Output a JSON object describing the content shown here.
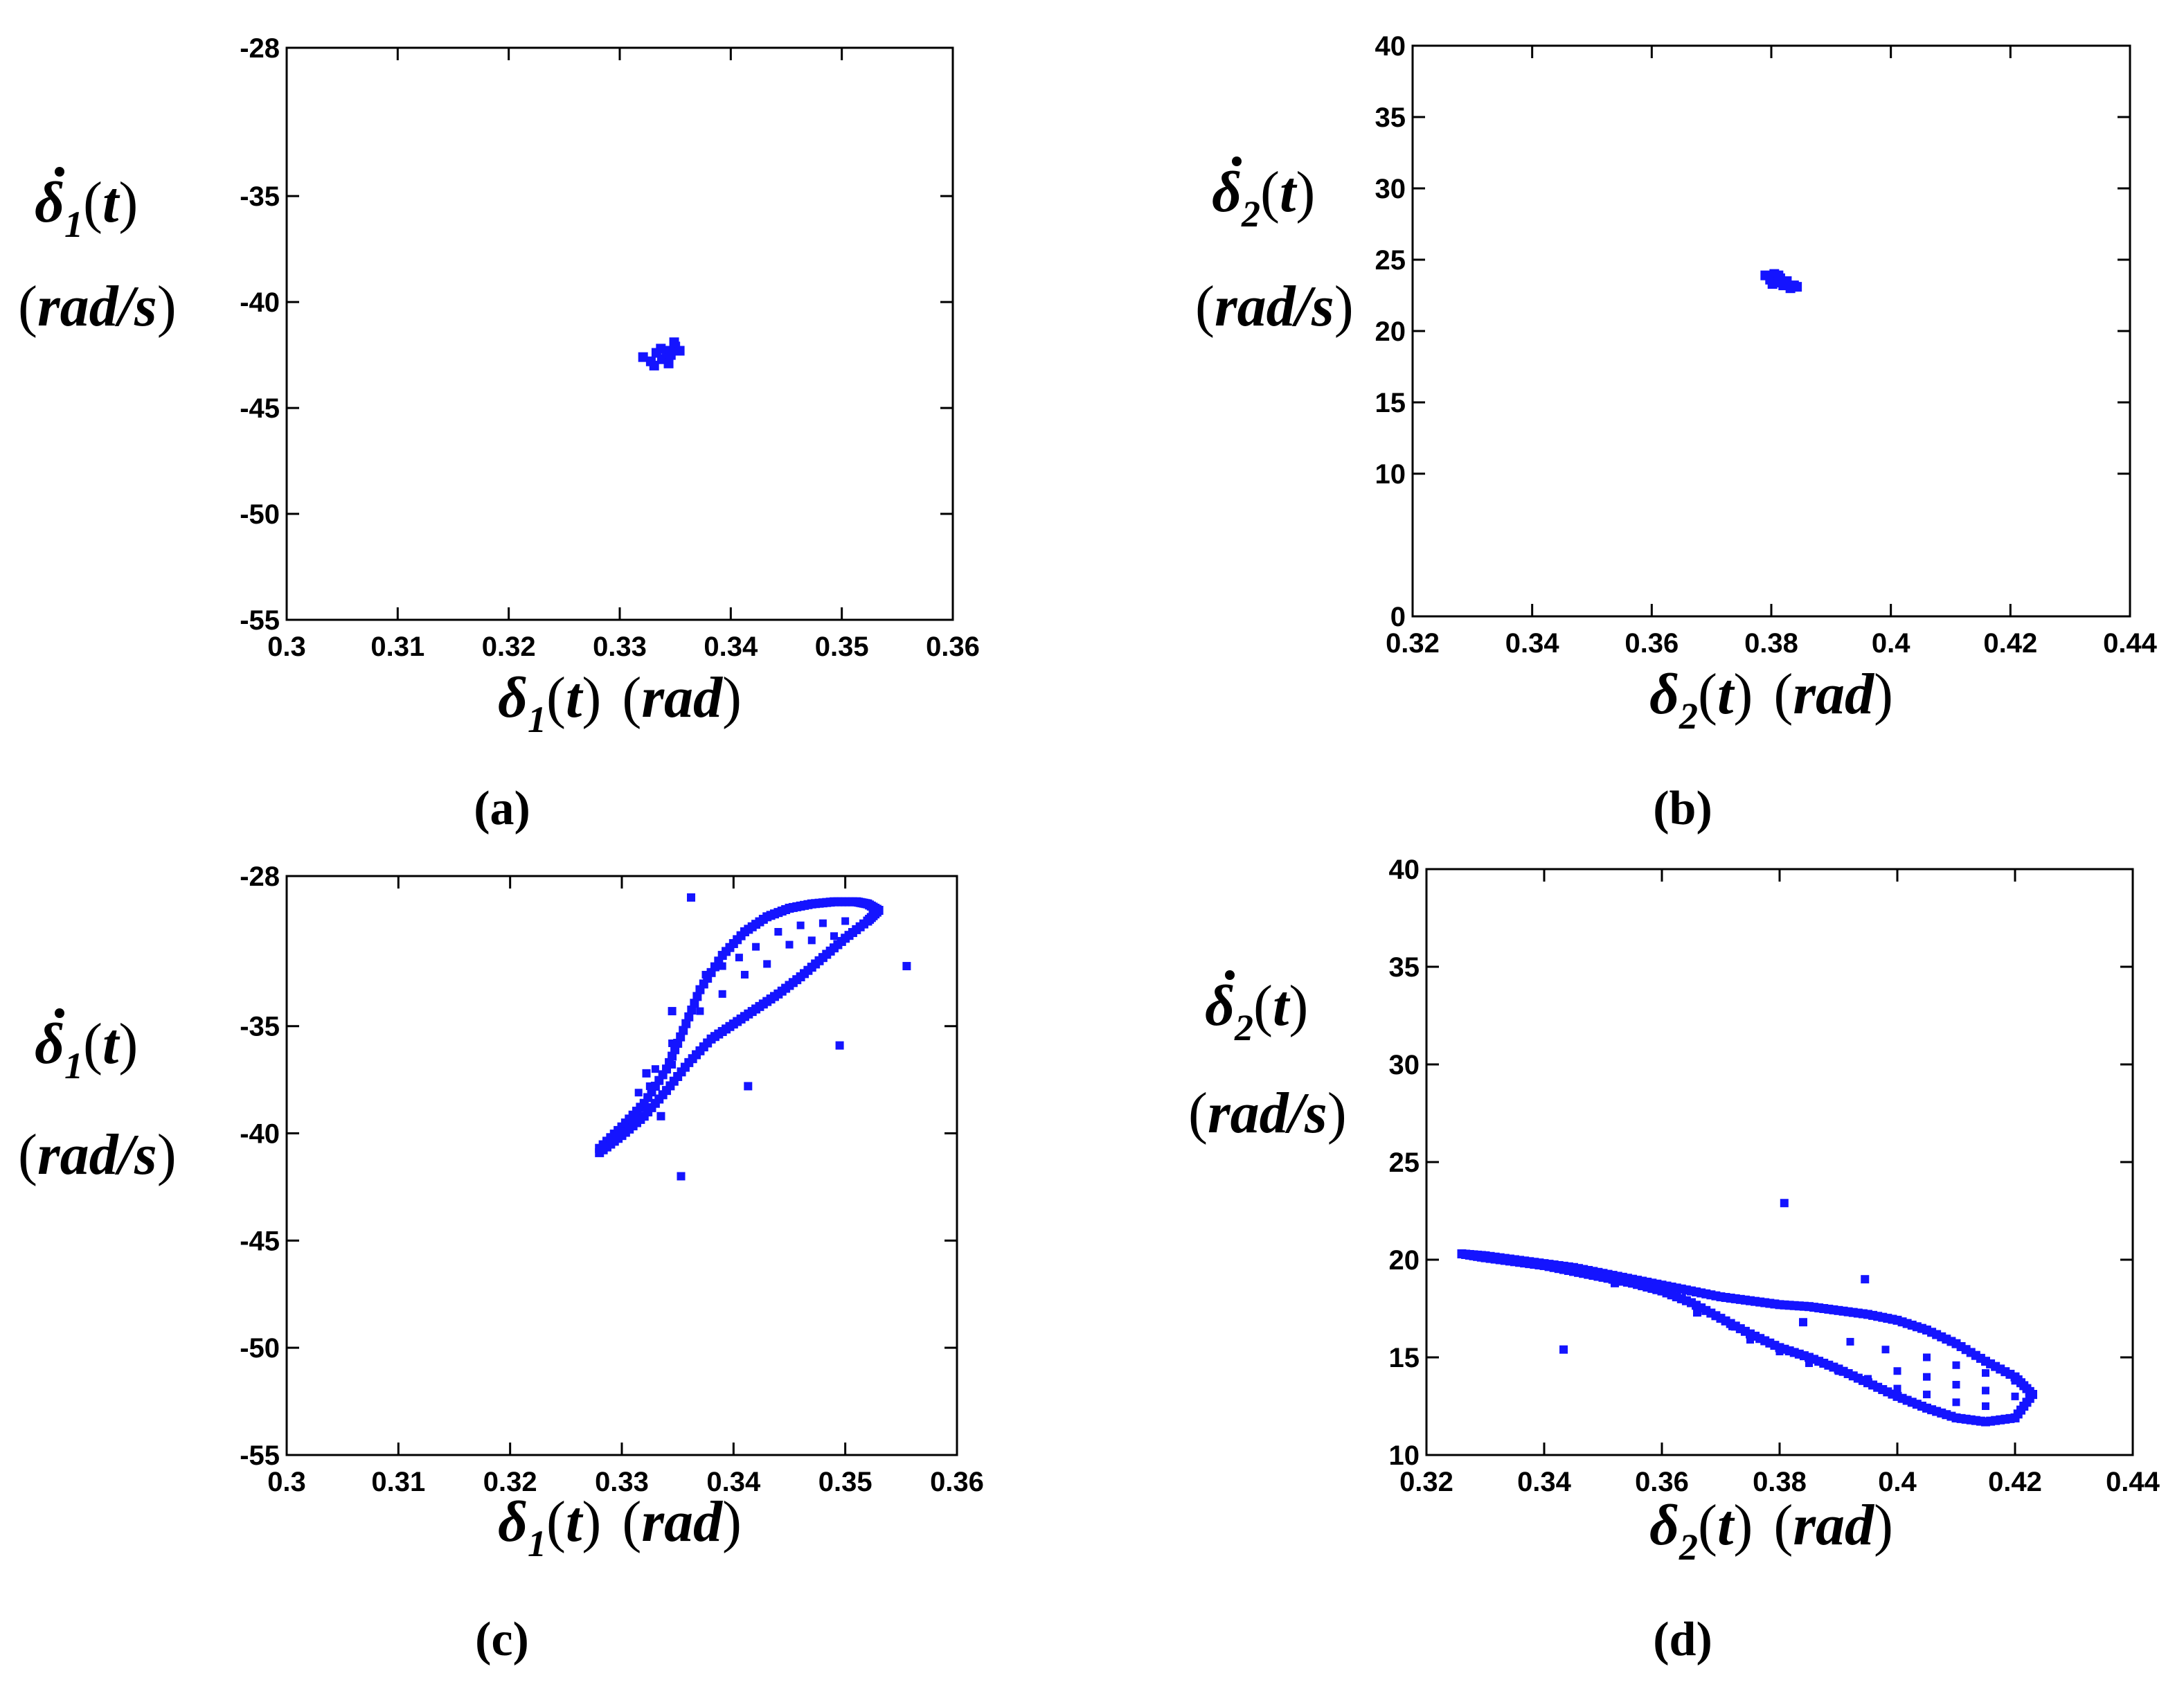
{
  "colors": {
    "marker": "#1414ff",
    "axis": "#000000"
  },
  "chart_data": [
    {
      "id": "a",
      "type": "scatter",
      "caption": "(a)",
      "xlabel": "δ1(t) (rad)",
      "ylabel": "δ̇1(t) (rad/s)",
      "xlim": [
        0.3,
        0.36
      ],
      "ylim": [
        -55,
        -28
      ],
      "xticks": [
        0.3,
        0.31,
        0.32,
        0.33,
        0.34,
        0.35,
        0.36
      ],
      "xtick_labels": [
        "0.3",
        "0.31",
        "0.32",
        "0.33",
        "0.34",
        "0.35",
        "0.36"
      ],
      "yticks": [
        -55,
        -50,
        -45,
        -40,
        -35,
        -28
      ],
      "ytick_labels": [
        "-55",
        "-50",
        "-45",
        "-40",
        "-35",
        "-28"
      ],
      "series": [
        {
          "cluster": [
            [
              0.3321,
              -42.6
            ],
            [
              0.3328,
              -42.8
            ],
            [
              0.3333,
              -42.4
            ],
            [
              0.3338,
              -42.7
            ],
            [
              0.3342,
              -42.3
            ],
            [
              0.3346,
              -42.5
            ],
            [
              0.335,
              -42.1
            ],
            [
              0.3354,
              -42.3
            ],
            [
              0.3331,
              -43.0
            ],
            [
              0.3344,
              -42.9
            ],
            [
              0.3349,
              -41.9
            ],
            [
              0.3337,
              -42.2
            ]
          ]
        }
      ]
    },
    {
      "id": "b",
      "type": "scatter",
      "caption": "(b)",
      "xlabel": "δ2(t) (rad)",
      "ylabel": "δ̇2(t) (rad/s)",
      "xlim": [
        0.32,
        0.44
      ],
      "ylim": [
        0,
        40
      ],
      "xticks": [
        0.32,
        0.34,
        0.36,
        0.38,
        0.4,
        0.42,
        0.44
      ],
      "xtick_labels": [
        "0.32",
        "0.34",
        "0.36",
        "0.38",
        "0.4",
        "0.42",
        "0.44"
      ],
      "yticks": [
        0,
        10,
        15,
        20,
        25,
        30,
        35,
        40
      ],
      "ytick_labels": [
        "0",
        "10",
        "15",
        "20",
        "25",
        "30",
        "35",
        "40"
      ],
      "series": [
        {
          "cluster": [
            [
              0.379,
              23.9
            ],
            [
              0.3798,
              23.6
            ],
            [
              0.3805,
              24.0
            ],
            [
              0.381,
              23.4
            ],
            [
              0.3815,
              23.7
            ],
            [
              0.382,
              23.2
            ],
            [
              0.3826,
              23.5
            ],
            [
              0.3832,
              23.0
            ],
            [
              0.3838,
              23.2
            ],
            [
              0.3843,
              23.1
            ],
            [
              0.3802,
              23.3
            ],
            [
              0.3812,
              23.9
            ]
          ]
        }
      ]
    },
    {
      "id": "c",
      "type": "scatter",
      "caption": "(c)",
      "xlabel": "δ1(t) (rad)",
      "ylabel": "δ̇1(t) (rad/s)",
      "xlim": [
        0.3,
        0.36
      ],
      "ylim": [
        -55,
        -28
      ],
      "xticks": [
        0.3,
        0.31,
        0.32,
        0.33,
        0.34,
        0.35,
        0.36
      ],
      "xtick_labels": [
        "0.3",
        "0.31",
        "0.32",
        "0.33",
        "0.34",
        "0.35",
        "0.36"
      ],
      "yticks": [
        -55,
        -50,
        -45,
        -40,
        -35,
        -28
      ],
      "ytick_labels": [
        "-55",
        "-50",
        "-45",
        "-40",
        "-35",
        "-28"
      ],
      "series": [
        {
          "upper_branch": [
            [
              0.328,
              -40.7
            ],
            [
              0.33,
              -39.7
            ],
            [
              0.332,
              -38.6
            ],
            [
              0.334,
              -37.0
            ],
            [
              0.3355,
              -35.2
            ],
            [
              0.337,
              -33.3
            ],
            [
              0.339,
              -31.7
            ],
            [
              0.341,
              -30.6
            ],
            [
              0.343,
              -29.9
            ],
            [
              0.345,
              -29.5
            ],
            [
              0.347,
              -29.3
            ],
            [
              0.349,
              -29.2
            ],
            [
              0.351,
              -29.2
            ],
            [
              0.352,
              -29.3
            ],
            [
              0.353,
              -29.6
            ]
          ],
          "lower_branch": [
            [
              0.328,
              -40.9
            ],
            [
              0.33,
              -40.1
            ],
            [
              0.332,
              -39.2
            ],
            [
              0.334,
              -38.0
            ],
            [
              0.336,
              -36.7
            ],
            [
              0.338,
              -35.6
            ],
            [
              0.34,
              -34.9
            ],
            [
              0.342,
              -34.2
            ],
            [
              0.344,
              -33.5
            ],
            [
              0.346,
              -32.7
            ],
            [
              0.348,
              -31.8
            ],
            [
              0.35,
              -30.9
            ],
            [
              0.352,
              -30.1
            ],
            [
              0.353,
              -29.6
            ]
          ],
          "interior_points": [
            [
              0.3375,
              -32.6
            ],
            [
              0.339,
              -32.2
            ],
            [
              0.3405,
              -31.8
            ],
            [
              0.342,
              -31.3
            ],
            [
              0.344,
              -30.6
            ],
            [
              0.346,
              -30.3
            ],
            [
              0.348,
              -30.2
            ],
            [
              0.35,
              -30.1
            ],
            [
              0.345,
              -31.2
            ],
            [
              0.347,
              -31.0
            ],
            [
              0.349,
              -30.8
            ],
            [
              0.343,
              -32.1
            ],
            [
              0.341,
              -32.6
            ],
            [
              0.339,
              -33.5
            ],
            [
              0.337,
              -34.3
            ],
            [
              0.3345,
              -35.8
            ],
            [
              0.333,
              -37.0
            ],
            [
              0.3315,
              -38.1
            ],
            [
              0.3325,
              -37.8
            ],
            [
              0.3345,
              -36.8
            ]
          ],
          "outliers": [
            [
              0.3362,
              -29.0
            ],
            [
              0.3555,
              -32.2
            ],
            [
              0.3322,
              -37.2
            ],
            [
              0.3495,
              -35.9
            ],
            [
              0.3413,
              -37.8
            ],
            [
              0.3353,
              -42.0
            ],
            [
              0.3335,
              -39.2
            ],
            [
              0.3345,
              -34.3
            ]
          ]
        }
      ]
    },
    {
      "id": "d",
      "type": "scatter",
      "caption": "(d)",
      "xlabel": "δ2(t) (rad)",
      "ylabel": "δ̇2(t) (rad/s)",
      "xlim": [
        0.32,
        0.44
      ],
      "ylim": [
        10,
        40
      ],
      "xticks": [
        0.32,
        0.34,
        0.36,
        0.38,
        0.4,
        0.42,
        0.44
      ],
      "xtick_labels": [
        "0.32",
        "0.34",
        "0.36",
        "0.38",
        "0.4",
        "0.42",
        "0.44"
      ],
      "yticks": [
        10,
        15,
        20,
        25,
        30,
        35,
        40
      ],
      "ytick_labels": [
        "10",
        "15",
        "20",
        "25",
        "30",
        "35",
        "40"
      ],
      "series": [
        {
          "upper_branch": [
            [
              0.326,
              20.3
            ],
            [
              0.33,
              20.2
            ],
            [
              0.335,
              20.0
            ],
            [
              0.34,
              19.8
            ],
            [
              0.345,
              19.6
            ],
            [
              0.35,
              19.3
            ],
            [
              0.355,
              19.0
            ],
            [
              0.36,
              18.7
            ],
            [
              0.365,
              18.4
            ],
            [
              0.37,
              18.1
            ],
            [
              0.375,
              17.9
            ],
            [
              0.38,
              17.7
            ],
            [
              0.385,
              17.6
            ],
            [
              0.39,
              17.4
            ],
            [
              0.395,
              17.2
            ],
            [
              0.4,
              16.9
            ],
            [
              0.405,
              16.4
            ],
            [
              0.41,
              15.7
            ],
            [
              0.415,
              14.8
            ],
            [
              0.42,
              14.0
            ],
            [
              0.423,
              13.1
            ]
          ],
          "lower_branch": [
            [
              0.326,
              20.3
            ],
            [
              0.33,
              20.1
            ],
            [
              0.335,
              19.9
            ],
            [
              0.34,
              19.7
            ],
            [
              0.345,
              19.4
            ],
            [
              0.35,
              19.1
            ],
            [
              0.355,
              18.8
            ],
            [
              0.36,
              18.4
            ],
            [
              0.365,
              17.8
            ],
            [
              0.37,
              17.0
            ],
            [
              0.375,
              16.2
            ],
            [
              0.38,
              15.5
            ],
            [
              0.385,
              15.0
            ],
            [
              0.39,
              14.4
            ],
            [
              0.395,
              13.7
            ],
            [
              0.4,
              13.0
            ],
            [
              0.405,
              12.4
            ],
            [
              0.41,
              11.9
            ],
            [
              0.415,
              11.7
            ],
            [
              0.42,
              11.9
            ],
            [
              0.423,
              13.1
            ]
          ],
          "interior_points": [
            [
              0.375,
              15.9
            ],
            [
              0.38,
              15.3
            ],
            [
              0.385,
              14.7
            ],
            [
              0.39,
              14.3
            ],
            [
              0.395,
              13.9
            ],
            [
              0.4,
              13.4
            ],
            [
              0.405,
              13.1
            ],
            [
              0.41,
              12.7
            ],
            [
              0.415,
              12.5
            ],
            [
              0.4,
              14.3
            ],
            [
              0.405,
              14.0
            ],
            [
              0.41,
              13.6
            ],
            [
              0.415,
              13.3
            ],
            [
              0.42,
              13.0
            ],
            [
              0.405,
              15.0
            ],
            [
              0.41,
              14.6
            ],
            [
              0.415,
              14.2
            ],
            [
              0.42,
              13.8
            ],
            [
              0.398,
              15.4
            ],
            [
              0.392,
              15.8
            ]
          ],
          "outliers": [
            [
              0.3808,
              22.9
            ],
            [
              0.3945,
              19.0
            ],
            [
              0.3433,
              15.4
            ],
            [
              0.352,
              18.8
            ],
            [
              0.366,
              17.3
            ],
            [
              0.372,
              16.6
            ],
            [
              0.359,
              18.5
            ],
            [
              0.384,
              16.8
            ]
          ]
        }
      ]
    }
  ]
}
